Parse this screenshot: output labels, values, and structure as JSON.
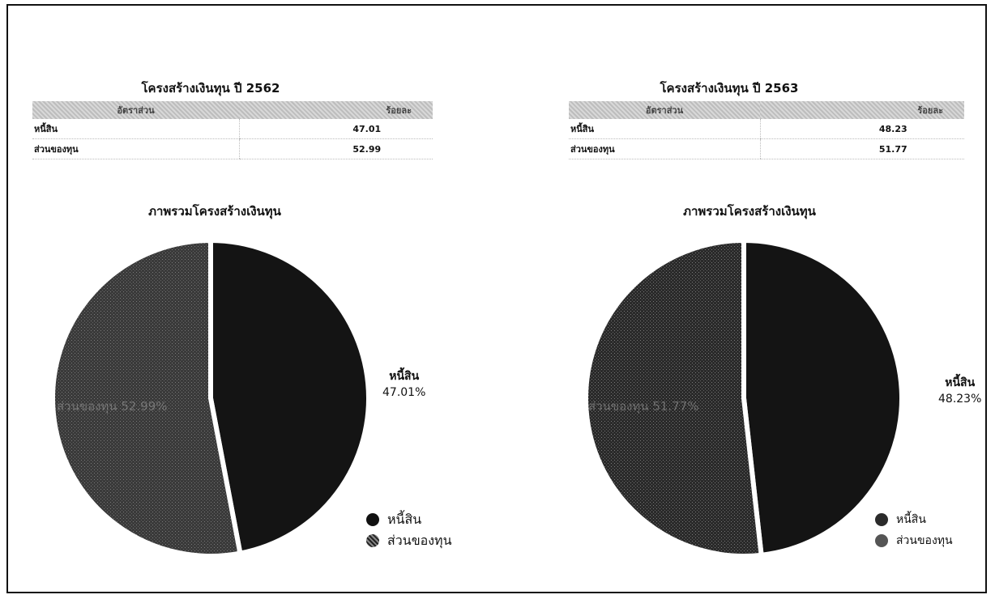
{
  "colors": {
    "debt": "#141414",
    "equity": "#3a3a3a",
    "equity_dark": "#2a2a2a",
    "gap": "#ffffff"
  },
  "panels": [
    {
      "id": "y2562",
      "title": "โครงสร้างเงินทุน ปี 2562",
      "table": {
        "headers": [
          "อัตราส่วน",
          "ร้อยละ"
        ],
        "rows": [
          {
            "label": "หนี้สิน",
            "value": "47.01"
          },
          {
            "label": "ส่วนของทุน",
            "value": "52.99"
          }
        ]
      },
      "chart_title": "ภาพรวมโครงสร้างเงินทุน",
      "slice_label_name": "หนี้สิน",
      "slice_label_value": "47.01%",
      "ghost_label": "ส่วนของทุน 52.99%",
      "legend": [
        "หนี้สิน",
        "ส่วนของทุน"
      ]
    },
    {
      "id": "y2563",
      "title": "โครงสร้างเงินทุน ปี 2563",
      "table": {
        "headers": [
          "อัตราส่วน",
          "ร้อยละ"
        ],
        "rows": [
          {
            "label": "หนี้สิน",
            "value": "48.23"
          },
          {
            "label": "ส่วนของทุน",
            "value": "51.77"
          }
        ]
      },
      "chart_title": "ภาพรวมโครงสร้างเงินทุน",
      "slice_label_name": "หนี้สิน",
      "slice_label_value": "48.23%",
      "ghost_label": "ส่วนของทุน 51.77%",
      "legend": [
        "หนี้สิน",
        "ส่วนของทุน"
      ]
    }
  ],
  "chart_data": [
    {
      "type": "pie",
      "title": "ภาพรวมโครงสร้างเงินทุน",
      "categories": [
        "หนี้สิน",
        "ส่วนของทุน"
      ],
      "values": [
        47.01,
        52.99
      ],
      "legend_position": "bottom-right"
    },
    {
      "type": "pie",
      "title": "ภาพรวมโครงสร้างเงินทุน",
      "categories": [
        "หนี้สิน",
        "ส่วนของทุน"
      ],
      "values": [
        48.23,
        51.77
      ],
      "legend_position": "bottom-right"
    }
  ]
}
